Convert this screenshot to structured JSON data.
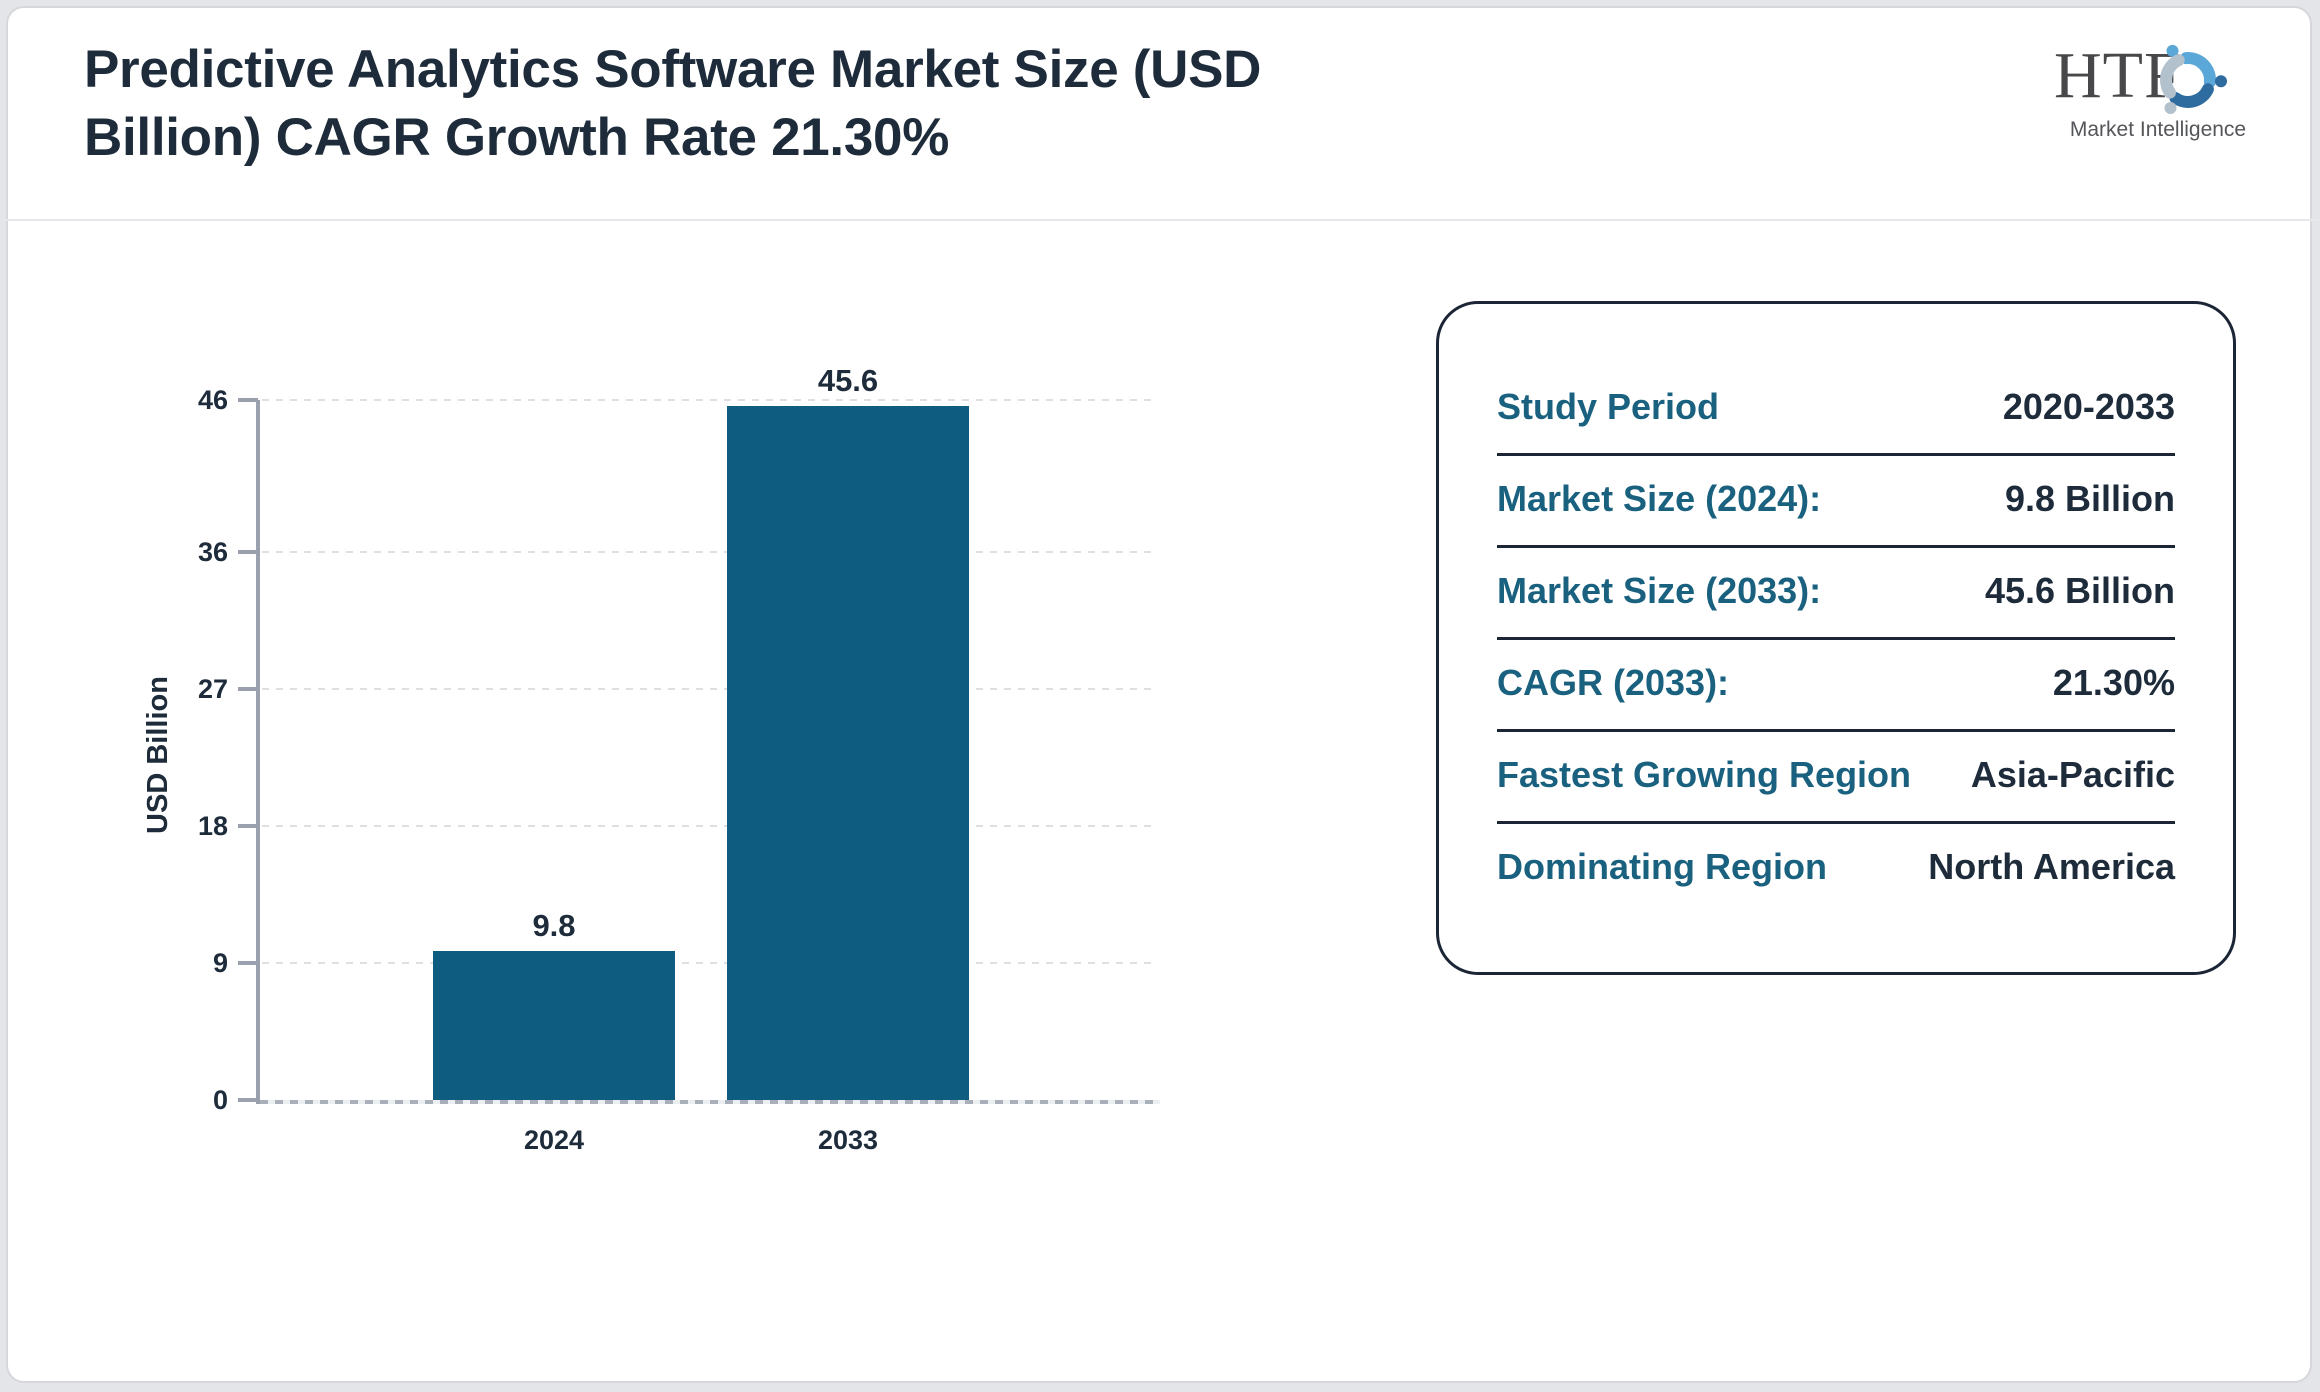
{
  "page": {
    "background_color": "#e4e5e9",
    "card_background": "#ffffff"
  },
  "header": {
    "title": "Predictive Analytics Software Market Size (USD Billion) CAGR Growth Rate 21.30%",
    "title_lines": [
      "Predictive Analytics Software Market Size (USD",
      "Billion) CAGR Growth Rate 21.30%"
    ],
    "title_color": "#1d2b3a",
    "logo": {
      "text": "HTF",
      "subtext": "Market Intelligence",
      "swirl_colors": [
        "#5aa7d8",
        "#2e6b9e",
        "#b3c1cd"
      ]
    }
  },
  "chart_data": {
    "type": "bar",
    "title": "",
    "categories": [
      "2024",
      "2033"
    ],
    "values": [
      9.8,
      45.6
    ],
    "value_labels": [
      "9.8",
      "45.6"
    ],
    "xlabel": "",
    "ylabel": "USD Billion",
    "yticks": [
      0,
      9,
      18,
      27,
      36,
      46
    ],
    "ylim": [
      0,
      46
    ],
    "grid": "horizontal-dashed",
    "legend": "none",
    "bar_color": "#0e5c80",
    "axis_color": "#9aa1ac"
  },
  "info_panel": {
    "label_color": "#19617f",
    "value_color": "#1d2b3a",
    "rows": [
      {
        "label": "Study Period",
        "value": "2020-2033"
      },
      {
        "label": "Market Size (2024):",
        "value": "9.8 Billion"
      },
      {
        "label": "Market Size (2033):",
        "value": "45.6 Billion"
      },
      {
        "label": "CAGR (2033):",
        "value": "21.30%"
      },
      {
        "label": "Fastest Growing Region",
        "value": "Asia-Pacific"
      },
      {
        "label": "Dominating Region",
        "value": "North America"
      }
    ]
  }
}
